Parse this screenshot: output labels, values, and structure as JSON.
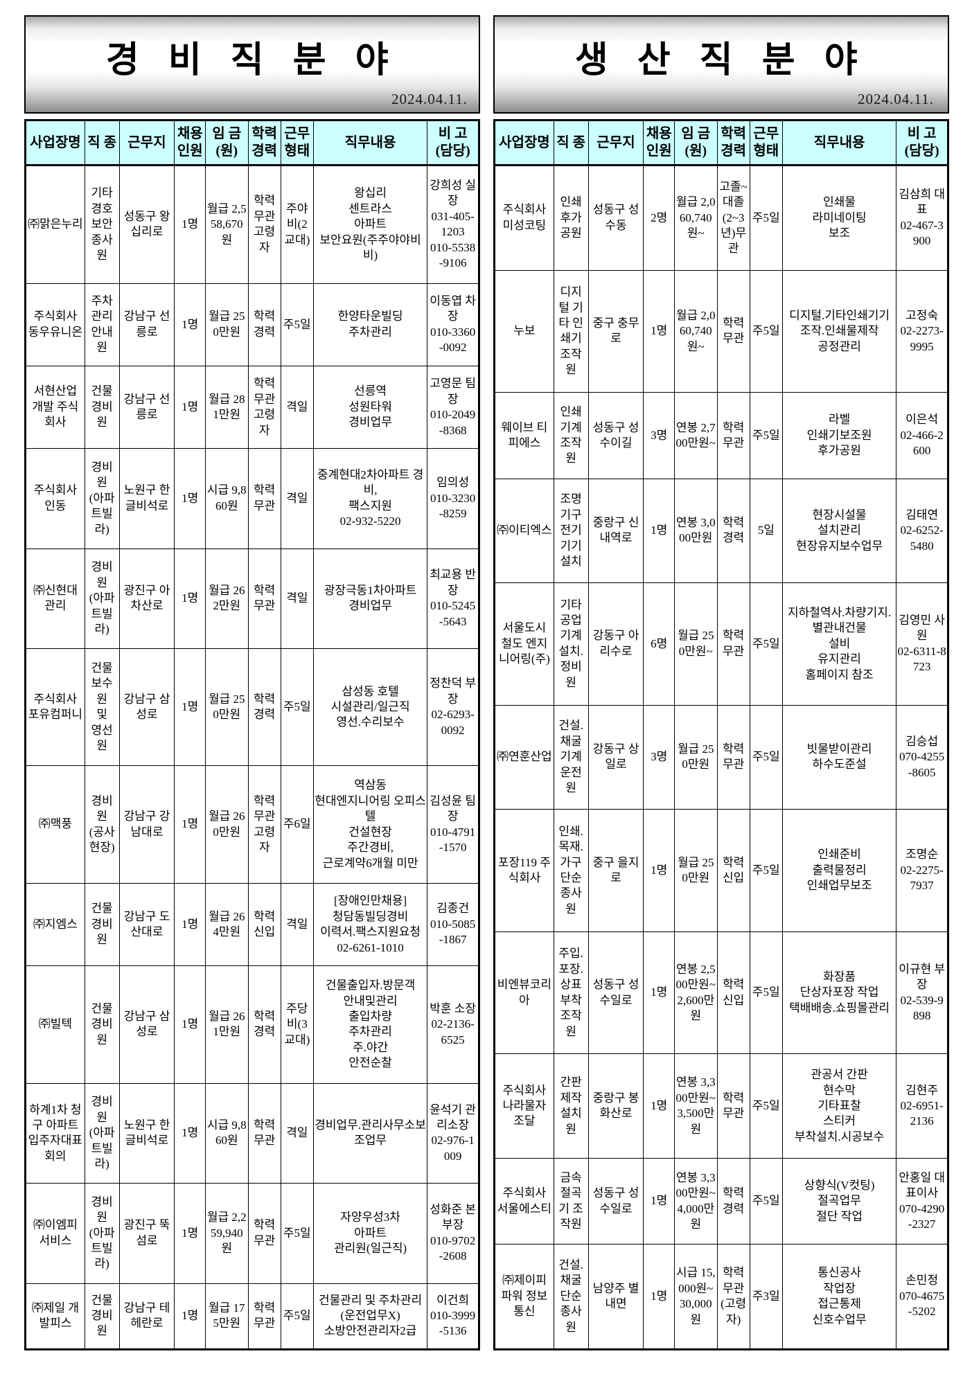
{
  "date_label": "2024.04.11.",
  "colors": {
    "header_bg": "#ccffff",
    "border": "#000000",
    "banner_gradient_top": "#a8a8a8",
    "banner_gradient_bottom": "#8c8c8c",
    "text": "#000000"
  },
  "columns": [
    "사업장명",
    "직 종",
    "근무지",
    "채용\n인원",
    "임 금\n(원)",
    "학력\n경력",
    "근무\n형태",
    "직무내용",
    "비 고\n(담당)"
  ],
  "column_keys": [
    "business",
    "job",
    "location",
    "hires",
    "wage",
    "education",
    "schedule",
    "duties",
    "contact"
  ],
  "left": {
    "title": "경 비 직 분 야",
    "date": "2024.04.11.",
    "rows": [
      [
        "㈜맑은누리",
        "기타경호 보안종사원",
        "성동구 왕십리로",
        "1명",
        "월급 2,558,670원",
        "학력무관 고령자",
        "주야비(2교대)",
        "왕십리\n센트라스\n아파트\n보안요원(주주야야비비)",
        "강희성 실장\n031-405-1203\n010-5538-9106"
      ],
      [
        "주식회사 동우유니온",
        "주차관리 안내원",
        "강남구 선릉로",
        "1명",
        "월급 250만원",
        "학력경력",
        "주5일",
        "한양타운빌딩\n주차관리",
        "이동엽 차장\n010-3360-0092"
      ],
      [
        "서현산업 개발 주식회사",
        "건물경비원",
        "강남구 선릉로",
        "1명",
        "월급 281만원",
        "학력무관 고령자",
        "격일",
        "선릉역\n성원타워\n경비업무",
        "고영문 팀장\n010-2049-8368"
      ],
      [
        "주식회사 인동",
        "경비원\n(아파트빌라)",
        "노원구 한글비석로",
        "1명",
        "시급 9,860원",
        "학력무관",
        "격일",
        "중계현대2차아파트 경비,\n팩스지원\n02-932-5220",
        "임의성\n010-3230-8259"
      ],
      [
        "㈜신현대 관리",
        "경비원\n(아파트빌라)",
        "광진구 아차산로",
        "1명",
        "월급 262만원",
        "학력무관",
        "격일",
        "광장극동1차아파트\n경비업무",
        "최교용 반장\n010-5245-5643"
      ],
      [
        "주식회사 포유컴퍼니",
        "건물보수원\n및\n영선원",
        "강남구 삼성로",
        "1명",
        "월급 250만원",
        "학력경력",
        "주5일",
        "삼성동 호텔\n시설관리/일근직\n영선.수리보수",
        "정찬덕 부장\n02-6293-0092"
      ],
      [
        "㈜맥풍",
        "경비원\n(공사현장)",
        "강남구 강남대로",
        "1명",
        "월급 260만원",
        "학력무관 고령자",
        "주6일",
        "역삼동\n현대엔지니어링 오피스텔\n건설현장\n주간경비,\n근로계약6개월 미만",
        "김성윤 팀장\n010-4791-1570"
      ],
      [
        "㈜지엠스",
        "건물경비원",
        "강남구 도산대로",
        "1명",
        "월급 264만원",
        "학력신입",
        "격일",
        "[장애인만채용]\n청담동빌딩경비\n이력서.팩스지원요청\n02-6261-1010",
        "김종건\n010-5085-1867"
      ],
      [
        "㈜빌텍",
        "건물 경비원",
        "강남구 삼성로",
        "1명",
        "월급 261만원",
        "학력경력",
        "주당비(3교대)",
        "건물출입자.방문객\n안내및관리\n출입차량\n주차관리\n주.야간\n안전순찰",
        "박훈 소장\n02-2136-6525"
      ],
      [
        "하계1차 청구 아파트입주자대표회의",
        "경비원\n(아파트빌라)",
        "노원구 한글비석로",
        "1명",
        "시급 9,860원",
        "학력무관",
        "격일",
        "경비업무.관리사무소보조업무",
        "윤석기 관리소장\n02-976-1009"
      ],
      [
        "㈜이엠피 서비스",
        "경비원\n(아파트빌라)",
        "광진구 뚝섬로",
        "1명",
        "월급 2,259,940원",
        "학력무관",
        "주5일",
        "자양우성3차\n아파트\n관리원(일근직)",
        "성화준 본부장\n010-9702-2608"
      ],
      [
        "㈜제일 개발피스",
        "건물 경비원",
        "강남구 테헤란로",
        "1명",
        "월급 175만원",
        "학력무관",
        "주5일",
        "건물관리 및 주차관리(운전업무X)\n소방안전관리자2급",
        "이건희\n010-3999-5136"
      ]
    ]
  },
  "right": {
    "title": "생 산 직 분 야",
    "date": "2024.04.11.",
    "rows": [
      [
        "주식회사 미성코팅",
        "인쇄 후가 공원",
        "성동구 성수동",
        "2명",
        "월급 2,060,740원~",
        "고졸~대졸(2~3년)무관",
        "주5일",
        "인쇄물\n라미네이팅\n보조",
        "김삼희 대표\n02-467-3900"
      ],
      [
        "누보",
        "디지털 기타 인쇄기 조작원",
        "중구 충무로",
        "1명",
        "월급 2,060,740원~",
        "학력무관",
        "주5일",
        "디지털.기타인쇄기기\n조작.인쇄물제작\n공정관리",
        "고정숙\n02-2273-9995"
      ],
      [
        "웨이브 티피에스",
        "인쇄 기계 조작원",
        "성동구 성수이길",
        "3명",
        "연봉 2,700만원~",
        "학력무관",
        "주5일",
        "라벨\n인쇄기보조원\n후가공원",
        "이은석\n02-466-2600"
      ],
      [
        "㈜이티엑스",
        "조명 기구 전기 기기 설치",
        "중랑구 신내역로",
        "1명",
        "연봉 3,000만원",
        "학력경력",
        "5일",
        "현장시설물\n설치관리\n현장유지보수업무",
        "김태연\n02-6252-5480"
      ],
      [
        "서울도시 철도 엔지니어링(주)",
        "기타 공업 기계 설치.정비원",
        "강동구 아리수로",
        "6명",
        "월급 250만원~",
        "학력무관",
        "주5일",
        "지하철역사.차량기지.별관내건물\n설비\n유지관리\n홈페이지 참조",
        "김영민 사원\n02-6311-8723"
      ],
      [
        "㈜연훈산업",
        "건설.채굴 기계운전원",
        "강동구 상일로",
        "3명",
        "월급 250만원",
        "학력무관",
        "주5일",
        "빗물받이관리\n하수도준설",
        "김승섭\n070-4255-8605"
      ],
      [
        "포장119 주식회사",
        "인쇄.목재.가구 단순 종사원",
        "중구 을지로",
        "1명",
        "월급 250만원",
        "학력신입",
        "주5일",
        "인쇄준비\n출력물정리\n인쇄업무보조",
        "조명순\n02-2275-7937"
      ],
      [
        "비엔뷰코리아",
        "주입.포장.상표 부착 조작원",
        "성동구 성수일로",
        "1명",
        "연봉 2,500만원~2,600만원",
        "학력신입",
        "주5일",
        "화장품\n단상자포장 작업\n택배배송.쇼핑몰관리",
        "이규현 부장\n02-539-9898"
      ],
      [
        "주식회사 나라물자 조달",
        "간판 제작 설치원",
        "중랑구 봉화산로",
        "1명",
        "연봉 3,300만원~3,500만원",
        "학력무관",
        "주5일",
        "관공서 간판\n현수막\n기타표찰\n스티커\n부착설치.시공보수",
        "김현주\n02-6951-2136"
      ],
      [
        "주식회사 서울에스티",
        "금속 절곡기 조작원",
        "성동구 성수일로",
        "1명",
        "연봉 3,300만원~4,000만원",
        "학력경력",
        "주5일",
        "상향식(V컷팅)\n절곡업무\n절단 작업",
        "안홍일 대표이사\n070-4290-2327"
      ],
      [
        "㈜제이피 파워 정보통신",
        "건설.채굴 단순 종사원",
        "남양주 별내면",
        "1명",
        "시급 15,000원~30,000원",
        "학력무관 (고령자)",
        "주3일",
        "통신공사\n작업장\n접근통제\n신호수업무",
        "손민정\n070-4675-5202"
      ]
    ]
  }
}
